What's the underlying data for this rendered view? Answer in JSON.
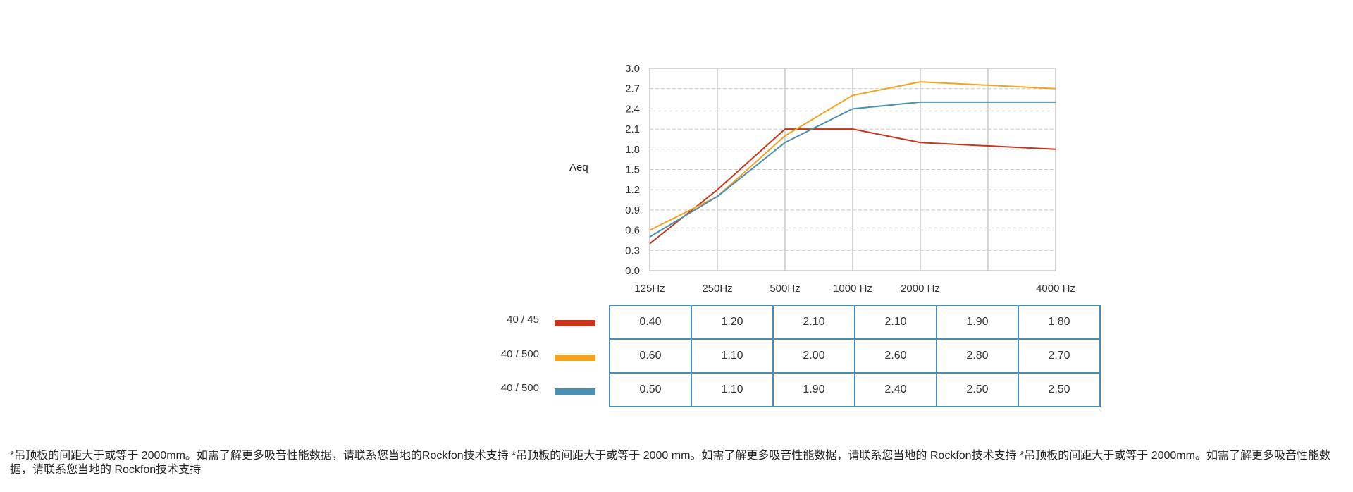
{
  "chart_data": {
    "type": "line",
    "ylabel": "Aeq",
    "ylim": [
      0,
      3.0
    ],
    "yticks": [
      "0.0",
      "0.3",
      "0.6",
      "0.9",
      "1.2",
      "1.5",
      "1.8",
      "2.1",
      "2.4",
      "2.7",
      "3.0"
    ],
    "categories": [
      "125Hz",
      "250Hz",
      "500Hz",
      "1000 Hz",
      "2000 Hz",
      "4000 Hz"
    ],
    "series": [
      {
        "name": "40 / 45",
        "color": "#c8341c",
        "values": [
          0.4,
          1.2,
          2.1,
          2.1,
          1.9,
          1.8
        ]
      },
      {
        "name": "40 / 500",
        "color": "#f5a21f",
        "values": [
          0.6,
          1.1,
          2.0,
          2.6,
          2.8,
          2.7
        ]
      },
      {
        "name": "40 / 500",
        "color": "#4a90b2",
        "values": [
          0.5,
          1.1,
          1.9,
          2.4,
          2.5,
          2.5
        ]
      }
    ],
    "table": [
      [
        "0.40",
        "1.20",
        "2.10",
        "2.10",
        "1.90",
        "1.80"
      ],
      [
        "0.60",
        "1.10",
        "2.00",
        "2.60",
        "2.80",
        "2.70"
      ],
      [
        "0.50",
        "1.10",
        "1.90",
        "2.40",
        "2.50",
        "2.50"
      ]
    ],
    "grid": true
  },
  "footnote": "*吊顶板的间距大于或等于 2000mm。如需了解更多吸音性能数据，请联系您当地的Rockfon技术支持 *吊顶板的间距大于或等于 2000 mm。如需了解更多吸音性能数据，请联系您当地的 Rockfon技术支持 *吊顶板的间距大于或等于 2000mm。如需了解更多吸音性能数据，请联系您当地的 Rockfon技术支持"
}
